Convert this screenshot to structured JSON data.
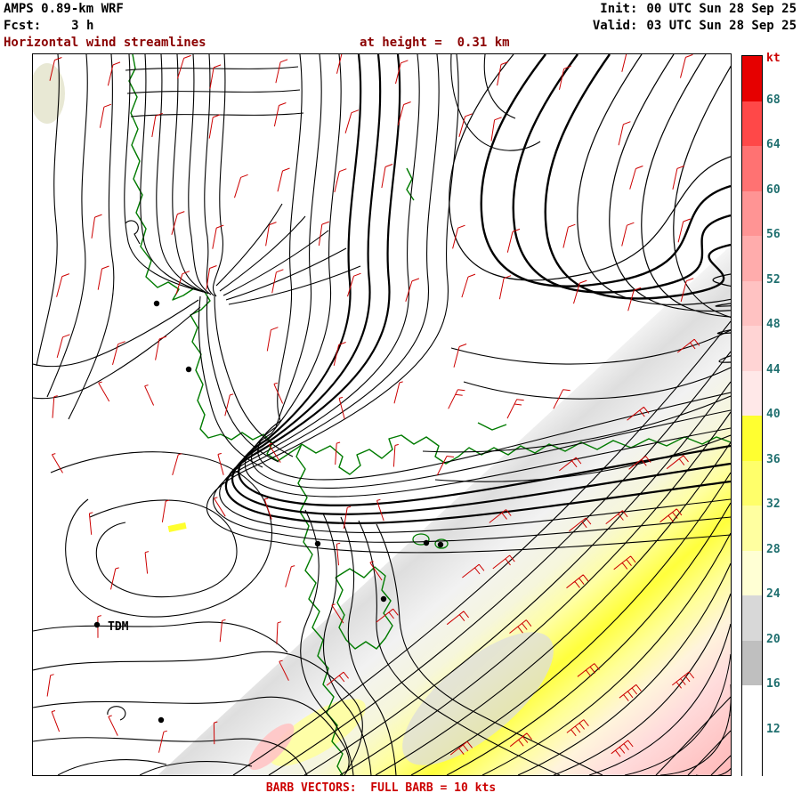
{
  "header": {
    "model": "AMPS 0.89-km WRF",
    "fcst_label": "Fcst:",
    "fcst_value": "3 h",
    "init_label": "Init:",
    "init_value": "00 UTC Sun 28 Sep 25",
    "valid_label": "Valid:",
    "valid_value": "03 UTC Sun 28 Sep 25",
    "field_title": "Horizontal wind streamlines",
    "height_title": "at height =  0.31 km"
  },
  "footer": {
    "caption": "BARB VECTORS:  FULL BARB = 10 kts"
  },
  "map": {
    "station_label": "TDM"
  },
  "colorbar": {
    "unit": "kt",
    "unit_color": "#cc0000",
    "label_color": "#1f6f6f",
    "tick_labels": [
      68,
      64,
      60,
      56,
      52,
      48,
      44,
      40,
      36,
      32,
      28,
      24,
      20,
      16,
      12
    ],
    "segment_colors": [
      "#e60000",
      "#ff4848",
      "#ff7272",
      "#ff9494",
      "#ffacac",
      "#ffc2c2",
      "#ffd4d4",
      "#ffe8e8",
      "#ffff30",
      "#ffff6a",
      "#ffffa0",
      "#ffffd4",
      "#d8d8d8",
      "#bfbfbf",
      "#ffffff",
      "#ffffff"
    ]
  },
  "colors": {
    "title": "#8b0000",
    "stream": "#000000",
    "coast": "#007b00",
    "barb": "#cc0000",
    "frame": "#000000"
  },
  "chart_data": {
    "type": "heatmap",
    "title": "Horizontal wind streamlines at height = 0.31 km",
    "model": "AMPS 0.89-km WRF",
    "forecast_hour": 3,
    "init_time": "00 UTC Sun 28 Sep 25",
    "valid_time": "03 UTC Sun 28 Sep 25",
    "units": "kt",
    "colorbar_ticks": [
      12,
      16,
      20,
      24,
      28,
      32,
      36,
      40,
      44,
      48,
      52,
      56,
      60,
      64,
      68
    ],
    "colorbar_colors_low_to_high": [
      "#ffffff",
      "#ffffff",
      "#bfbfbf",
      "#d8d8d8",
      "#ffffd4",
      "#ffffa0",
      "#ffff6a",
      "#ffff30",
      "#ffe8e8",
      "#ffd4d4",
      "#ffc2c2",
      "#ffacac",
      "#ff9494",
      "#ff7272",
      "#ff4848",
      "#e60000"
    ],
    "legend_position": "right",
    "annotations": [
      "TDM station marker (lower left)",
      "BARB VECTORS: FULL BARB = 10 kts"
    ],
    "description": "Black wind streamlines over an Antarctic coastal domain (green coastline). Light winds (unshaded, <12 kt) over most of the map; a strong low-level jet in the lower-right corner with shaded speed bands: gray 16-24 kt, yellow 28-40 kt, pink 44-52 kt toward the corner. Red wind barbs show direction; flow from the north converges into the southeast jet."
  }
}
